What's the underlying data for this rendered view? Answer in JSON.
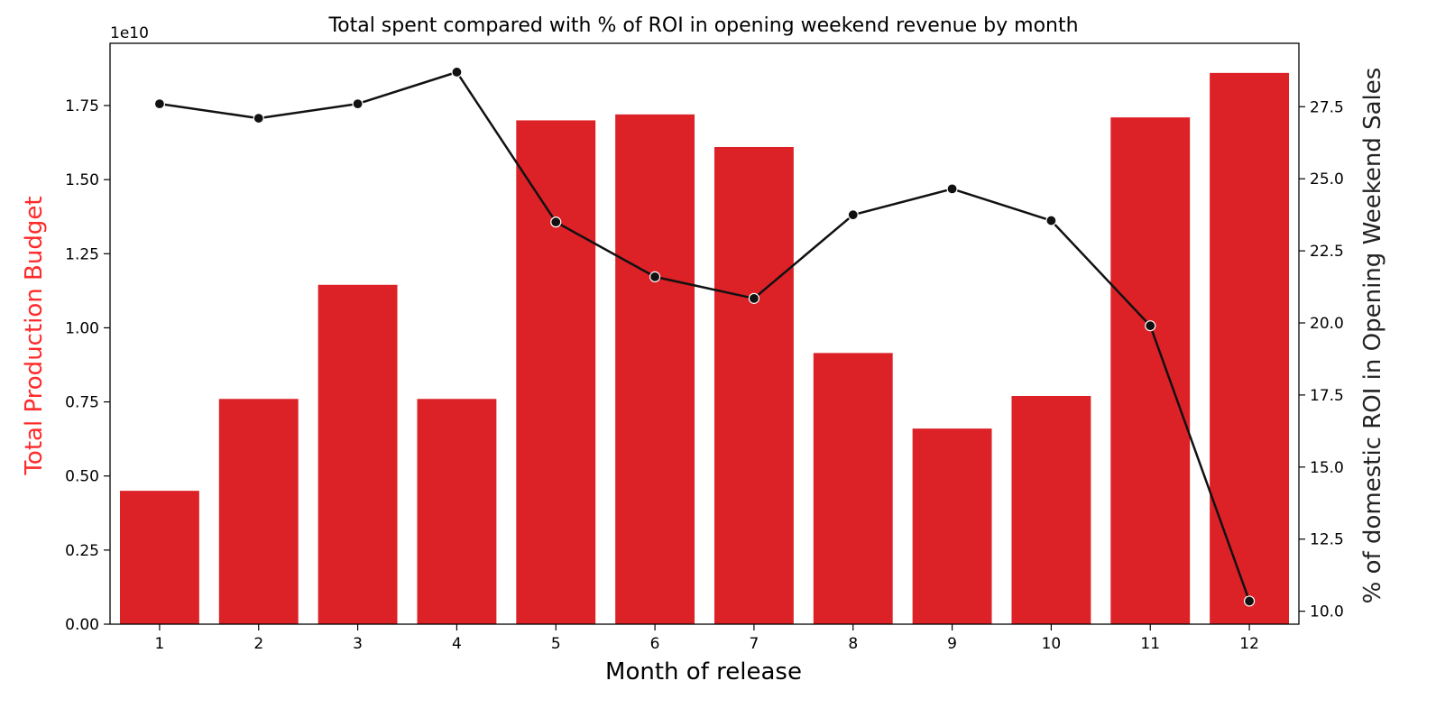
{
  "chart_data": {
    "type": "bar",
    "title": "Total spent compared with % of ROI in opening weekend revenue by month",
    "xlabel": "Month of release",
    "ylabel": "Total Production Budget",
    "y2label": "% of domestic ROI in Opening Weekend Sales",
    "offset_text": "1e10",
    "categories": [
      "1",
      "2",
      "3",
      "4",
      "5",
      "6",
      "7",
      "8",
      "9",
      "10",
      "11",
      "12"
    ],
    "ylim": [
      0,
      1.96
    ],
    "y_ticks": [
      "0.00",
      "0.25",
      "0.50",
      "0.75",
      "1.00",
      "1.25",
      "1.50",
      "1.75"
    ],
    "y2lim": [
      9.55,
      29.7
    ],
    "y2_ticks": [
      "10.0",
      "12.5",
      "15.0",
      "17.5",
      "20.0",
      "22.5",
      "25.0",
      "27.5"
    ],
    "grid": false,
    "series": [
      {
        "axis": "left",
        "kind": "bar",
        "values": [
          0.45,
          0.76,
          1.145,
          0.76,
          1.7,
          1.72,
          1.61,
          0.915,
          0.66,
          0.77,
          1.71,
          1.86
        ]
      },
      {
        "axis": "right",
        "kind": "line",
        "values": [
          27.6,
          27.1,
          27.6,
          28.7,
          23.5,
          21.6,
          20.85,
          23.75,
          24.65,
          23.55,
          19.9,
          10.35
        ]
      }
    ],
    "colors": {
      "bar": "#dc2127",
      "ylabel": "#ff2a2a",
      "line": "#111111",
      "axis": "#000000"
    }
  }
}
